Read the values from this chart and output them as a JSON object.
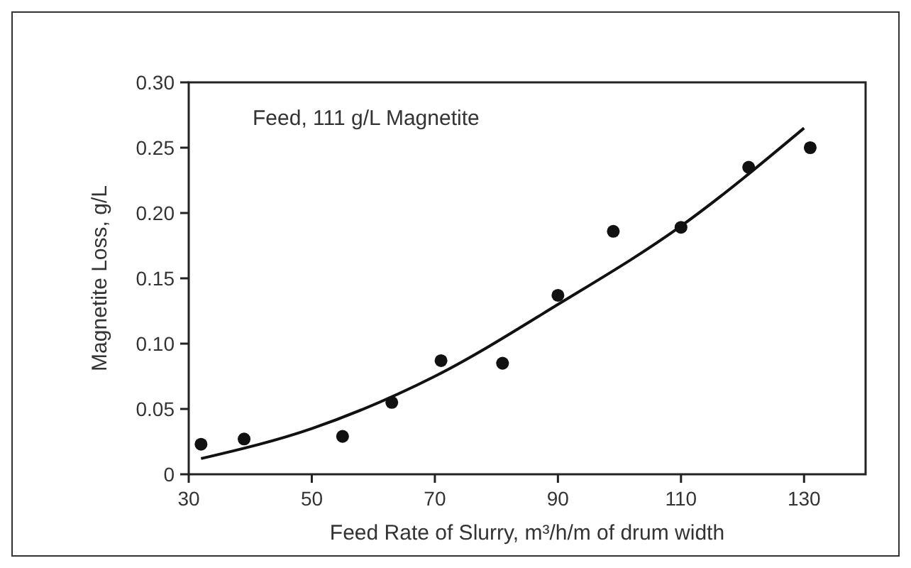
{
  "chart_data": {
    "type": "scatter",
    "xlabel": "Feed Rate of Slurry, m³/h/m of drum width",
    "ylabel": "Magnetite Loss, g/L",
    "annotations": [
      "Feed, 111 g/L Magnetite"
    ],
    "xlim": [
      30,
      140
    ],
    "xticks": [
      30,
      50,
      70,
      90,
      110,
      130
    ],
    "ylim": [
      0,
      0.3
    ],
    "yticks": [
      0,
      0.05,
      {
        "value": 0.1,
        "label": "0.10"
      },
      0.15,
      {
        "value": 0.2,
        "label": "0.20"
      },
      0.25,
      {
        "value": 0.3,
        "label": "0.30"
      }
    ],
    "grid": false,
    "marker": "circle",
    "series": [
      {
        "color": "#111111",
        "x": [
          32,
          39,
          55,
          63,
          71,
          81,
          90,
          99,
          110,
          121,
          131
        ],
        "values": [
          0.023,
          0.027,
          0.029,
          0.055,
          0.087,
          0.085,
          0.137,
          0.186,
          0.189,
          0.235,
          0.25
        ]
      },
      {
        "type": "line",
        "marker": "none",
        "color": "#111111",
        "x": [
          32,
          50,
          70,
          90,
          110,
          130
        ],
        "values": [
          0.012,
          0.035,
          0.075,
          0.13,
          0.19,
          0.265
        ]
      }
    ]
  }
}
